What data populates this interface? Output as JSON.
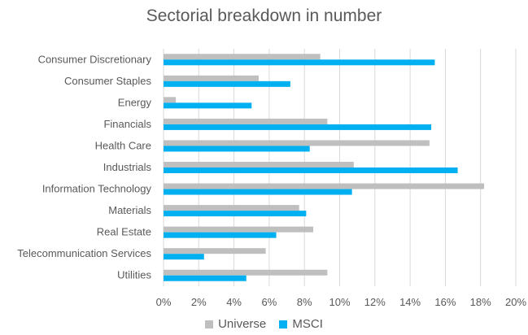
{
  "chart_data": {
    "type": "bar",
    "orientation": "horizontal",
    "title": "Sectorial breakdown in number",
    "xlabel": "",
    "ylabel": "",
    "categories": [
      "Consumer Discretionary",
      "Consumer Staples",
      "Energy",
      "Financials",
      "Health Care",
      "Industrials",
      "Information Technology",
      "Materials",
      "Real Estate",
      "Telecommunication Services",
      "Utilities"
    ],
    "series": [
      {
        "name": "Universe",
        "color": "#bfbfbf",
        "values": [
          8.9,
          5.4,
          0.7,
          9.3,
          15.1,
          10.8,
          18.2,
          7.7,
          8.5,
          5.8,
          9.3
        ]
      },
      {
        "name": "MSCI",
        "color": "#00b0f0",
        "values": [
          15.4,
          7.2,
          5.0,
          15.2,
          8.3,
          16.7,
          10.7,
          8.1,
          6.4,
          2.3,
          4.7
        ]
      }
    ],
    "xlim": [
      0,
      20
    ],
    "xticks": [
      "0%",
      "2%",
      "4%",
      "6%",
      "8%",
      "10%",
      "12%",
      "14%",
      "16%",
      "18%",
      "20%"
    ],
    "grid": true,
    "legend_position": "bottom"
  }
}
